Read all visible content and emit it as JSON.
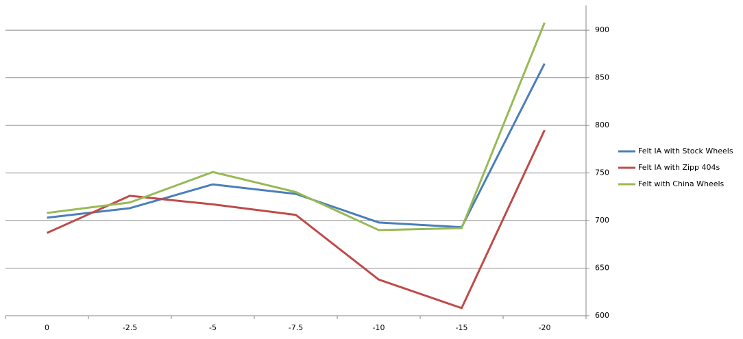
{
  "chart_data": {
    "type": "line",
    "categories": [
      "0",
      "-2.5",
      "-5",
      "-7.5",
      "-10",
      "-15",
      "-20"
    ],
    "series": [
      {
        "name": "Felt IA with Stock Wheels",
        "color": "#4a7ebb",
        "values": [
          703,
          713,
          738,
          728,
          698,
          693,
          865
        ]
      },
      {
        "name": "Felt IA with Zipp 404s",
        "color": "#be4b48",
        "values": [
          687,
          726,
          717,
          706,
          638,
          608,
          795
        ]
      },
      {
        "name": "Felt with China Wheels",
        "color": "#98b954",
        "values": [
          708,
          719,
          751,
          730,
          690,
          692,
          908
        ]
      }
    ],
    "ylim": [
      600,
      926
    ],
    "yticks": [
      600,
      650,
      700,
      750,
      800,
      850,
      900
    ],
    "grid": true,
    "legend": "right"
  }
}
